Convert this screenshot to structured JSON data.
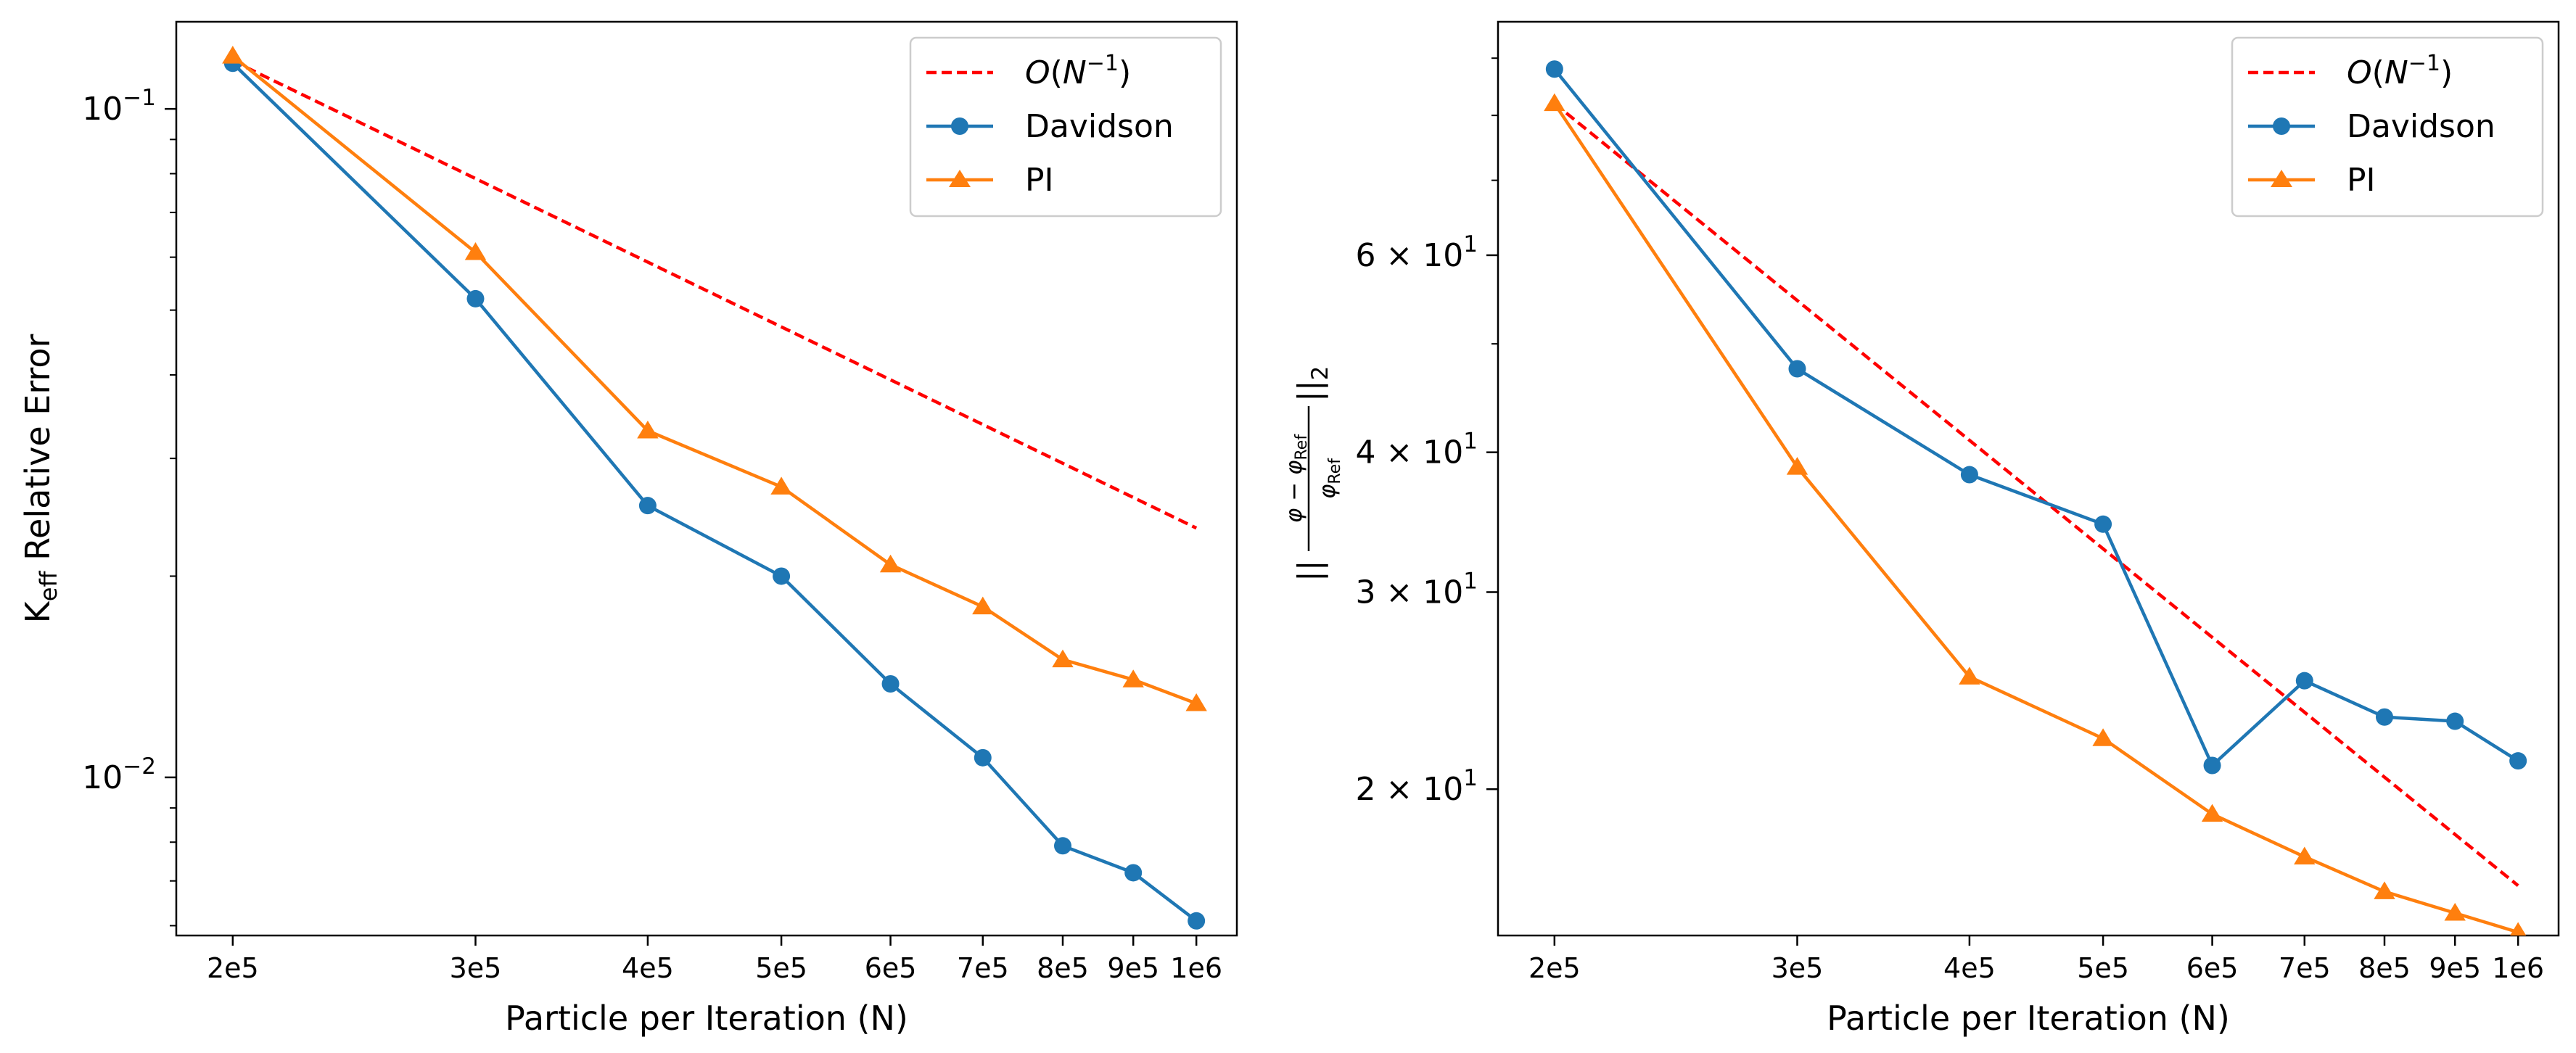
{
  "chart_data": [
    {
      "type": "line",
      "xscale": "log",
      "yscale": "log",
      "x": [
        200000,
        300000,
        400000,
        500000,
        600000,
        700000,
        800000,
        900000,
        1000000
      ],
      "xtick_labels": [
        "2e5",
        "3e5",
        "4e5",
        "5e5",
        "6e5",
        "7e5",
        "8e5",
        "9e5",
        "1e6"
      ],
      "xlabel": "Particle per Iteration (N)",
      "ylabel_main": "K",
      "ylabel_sub": "eff",
      "ylabel_rest": " Relative Error",
      "ylim": [
        0.0058,
        0.135
      ],
      "yticks_major": [
        {
          "value": 0.1,
          "base": "10",
          "exp": "−1"
        },
        {
          "value": 0.01,
          "base": "10",
          "exp": "−2"
        }
      ],
      "yticks_minor": [
        0.006,
        0.007,
        0.008,
        0.009,
        0.02,
        0.03,
        0.04,
        0.05,
        0.06,
        0.07,
        0.08,
        0.09
      ],
      "grid": false,
      "legend_position": "top-right",
      "series": [
        {
          "name": "O(N⁻¹)",
          "style": "dashed",
          "color": "#ff0000",
          "marker": "none",
          "x": [
            200000,
            1000000
          ],
          "values": [
            0.118,
            0.0236
          ]
        },
        {
          "name": "Davidson",
          "style": "solid",
          "color": "#1f77b4",
          "marker": "circle",
          "values": [
            0.117,
            0.052,
            0.0255,
            0.02,
            0.0138,
            0.0107,
            0.0079,
            0.0072,
            0.0061
          ]
        },
        {
          "name": "PI",
          "style": "solid",
          "color": "#ff7f0e",
          "marker": "triangle",
          "values": [
            0.12,
            0.061,
            0.033,
            0.0272,
            0.0208,
            0.018,
            0.015,
            0.014,
            0.0129
          ]
        }
      ]
    },
    {
      "type": "line",
      "xscale": "log",
      "yscale": "log",
      "x": [
        200000,
        300000,
        400000,
        500000,
        600000,
        700000,
        800000,
        900000,
        1000000
      ],
      "xtick_labels": [
        "2e5",
        "3e5",
        "4e5",
        "5e5",
        "6e5",
        "7e5",
        "8e5",
        "9e5",
        "1e6"
      ],
      "xlabel": "Particle per Iteration (N)",
      "ylabel": "||(φ − φRef)/φRef||2",
      "ylim": [
        14.8,
        97
      ],
      "yticks_major": [
        {
          "value": 60,
          "label": "6 × 10",
          "exp": "1"
        },
        {
          "value": 40,
          "label": "4 × 10",
          "exp": "1"
        },
        {
          "value": 30,
          "label": "3 × 10",
          "exp": "1"
        },
        {
          "value": 20,
          "label": "2 × 10",
          "exp": "1"
        }
      ],
      "yticks_minor": [
        50,
        70,
        80,
        90
      ],
      "grid": false,
      "legend_position": "top-right",
      "series": [
        {
          "name": "O(N⁻¹)",
          "style": "dashed",
          "color": "#ff0000",
          "marker": "none",
          "x": [
            200000,
            1000000
          ],
          "values": [
            82.0,
            16.4
          ]
        },
        {
          "name": "Davidson",
          "style": "solid",
          "color": "#1f77b4",
          "marker": "circle",
          "values": [
            88.0,
            47.5,
            38.2,
            34.5,
            21.0,
            25.0,
            23.2,
            23.0,
            21.2
          ]
        },
        {
          "name": "PI",
          "style": "solid",
          "color": "#ff7f0e",
          "marker": "triangle",
          "values": [
            82.0,
            38.8,
            25.2,
            22.2,
            19.0,
            17.4,
            16.2,
            15.5,
            14.9
          ]
        }
      ]
    }
  ]
}
